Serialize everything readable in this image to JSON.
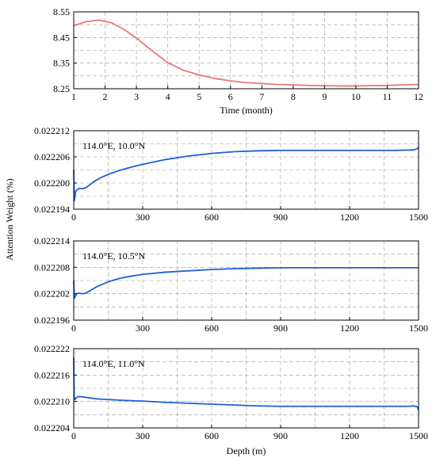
{
  "chart_data": [
    {
      "type": "line",
      "xlabel": "Time (month)",
      "ylabel": "",
      "annotation": "",
      "xlim": [
        1,
        12
      ],
      "ylim": [
        8.25,
        8.55
      ],
      "xticks": [
        1,
        2,
        3,
        4,
        5,
        6,
        7,
        8,
        9,
        10,
        11,
        12
      ],
      "yticks": [
        "8.25",
        "8.35",
        "8.45",
        "8.55"
      ],
      "grid": true,
      "line_color": "#e8787a",
      "series": [
        {
          "x": [
            1,
            1.4,
            1.8,
            2.2,
            2.6,
            3,
            3.5,
            4,
            4.5,
            5,
            5.5,
            6,
            6.5,
            7,
            7.5,
            8,
            8.5,
            9,
            9.5,
            10,
            10.5,
            11,
            11.5,
            12
          ],
          "values": [
            8.496,
            8.512,
            8.518,
            8.508,
            8.482,
            8.448,
            8.398,
            8.352,
            8.322,
            8.304,
            8.29,
            8.281,
            8.274,
            8.27,
            8.267,
            8.265,
            8.263,
            8.262,
            8.261,
            8.261,
            8.262,
            8.263,
            8.265,
            8.267
          ]
        }
      ]
    },
    {
      "type": "line",
      "xlabel": "",
      "ylabel": "",
      "annotation": "114.0°E, 10.0°N",
      "xlim": [
        0,
        1500
      ],
      "ylim": [
        0.022194,
        0.022212
      ],
      "xticks": [
        0,
        300,
        600,
        900,
        1200,
        1500
      ],
      "yticks": [
        "0.022194",
        "0.022200",
        "0.022206",
        "0.022212"
      ],
      "grid": true,
      "line_color": "#1f5fd6",
      "series": [
        {
          "x": [
            0,
            3,
            8,
            15,
            25,
            40,
            55,
            70,
            90,
            120,
            160,
            200,
            260,
            300,
            400,
            500,
            600,
            700,
            800,
            900,
            1000,
            1100,
            1200,
            1300,
            1400,
            1480,
            1495,
            1500
          ],
          "values": [
            0.022203,
            0.022196,
            0.022198,
            0.0221985,
            0.0221988,
            0.0221987,
            0.022199,
            0.0221996,
            0.0222004,
            0.0222013,
            0.0222022,
            0.0222029,
            0.0222038,
            0.0222043,
            0.0222054,
            0.0222062,
            0.0222068,
            0.0222072,
            0.0222074,
            0.0222075,
            0.0222075,
            0.0222075,
            0.0222075,
            0.0222075,
            0.0222075,
            0.0222076,
            0.0222079,
            0.0222082
          ]
        }
      ]
    },
    {
      "type": "line",
      "xlabel": "",
      "ylabel": "Attention Weight (%)",
      "annotation": "114.0°E, 10.5°N",
      "xlim": [
        0,
        1500
      ],
      "ylim": [
        0.022196,
        0.022214
      ],
      "xticks": [
        0,
        300,
        600,
        900,
        1200,
        1500
      ],
      "yticks": [
        "0.022196",
        "0.022202",
        "0.022208",
        "0.022214"
      ],
      "grid": true,
      "line_color": "#1f5fd6",
      "series": [
        {
          "x": [
            0,
            3,
            8,
            15,
            25,
            40,
            55,
            75,
            100,
            150,
            200,
            250,
            300,
            400,
            500,
            600,
            700,
            800,
            900,
            1000,
            1100,
            1200,
            1300,
            1400,
            1500
          ],
          "values": [
            0.022205,
            0.022201,
            0.0222015,
            0.0222021,
            0.0222021,
            0.022202,
            0.0222022,
            0.0222028,
            0.0222036,
            0.0222047,
            0.0222055,
            0.022206,
            0.0222064,
            0.0222069,
            0.0222072,
            0.0222075,
            0.0222077,
            0.0222078,
            0.0222079,
            0.0222079,
            0.0222079,
            0.0222079,
            0.0222079,
            0.0222079,
            0.0222079
          ]
        }
      ]
    },
    {
      "type": "line",
      "xlabel": "Depth (m)",
      "ylabel": "",
      "annotation": "114.0°E, 11.0°N",
      "xlim": [
        0,
        1500
      ],
      "ylim": [
        0.022204,
        0.022222
      ],
      "xticks": [
        0,
        300,
        600,
        900,
        1200,
        1500
      ],
      "yticks": [
        "0.022204",
        "0.022210",
        "0.022216",
        "0.022222"
      ],
      "grid": true,
      "line_color": "#1f5fd6",
      "series": [
        {
          "x": [
            0,
            2,
            6,
            10,
            18,
            30,
            45,
            60,
            100,
            200,
            300,
            400,
            500,
            600,
            700,
            800,
            900,
            1000,
            1100,
            1200,
            1300,
            1400,
            1450,
            1480,
            1495,
            1500
          ],
          "values": [
            0.02222,
            0.022211,
            0.0222104,
            0.0222108,
            0.0222111,
            0.0222111,
            0.022211,
            0.0222109,
            0.0222106,
            0.0222103,
            0.0222101,
            0.0222098,
            0.0222096,
            0.0222094,
            0.0222092,
            0.022209,
            0.0222089,
            0.0222089,
            0.0222089,
            0.0222089,
            0.0222089,
            0.0222089,
            0.0222089,
            0.022209,
            0.0222088,
            0.022208
          ]
        }
      ]
    }
  ]
}
